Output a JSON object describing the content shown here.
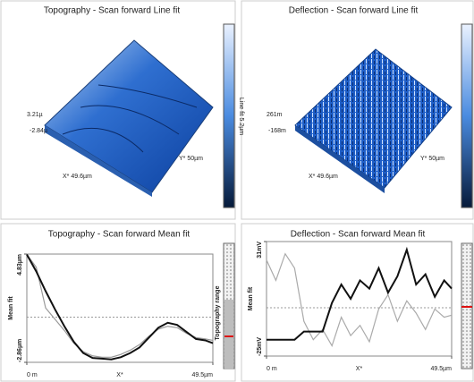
{
  "panels": [
    {
      "title": "Topography - Scan forward   Line fit",
      "z_top": "3.21µ",
      "z_bottom": "-2.84µ",
      "x_label": "X* 49.6µm",
      "y_label": "Y* 50µm",
      "colorbar_label": "Line fit 5.2µm"
    },
    {
      "title": "Deflection - Scan forward   Line fit",
      "z_top": "261m",
      "z_bottom": "-168m",
      "x_label": "X* 49.6µm",
      "y_label": "Y* 50µm"
    }
  ],
  "plots": [
    {
      "type": "line",
      "title": "Topography - Scan forward   Mean fit",
      "y_label": "Mean fit",
      "x_label": "X*",
      "side_label": "Topography range",
      "xlim": [
        0,
        49.5
      ],
      "xticks": [
        {
          "value": 0,
          "label": "0 m"
        },
        {
          "value": 49.5,
          "label": "49.5µm"
        }
      ],
      "ylim": [
        -2.86,
        4.83
      ],
      "yticks": [
        {
          "value": 4.83,
          "label": "4.83µm"
        },
        {
          "value": -2.86,
          "label": "-2.86µm"
        }
      ],
      "x": [
        0,
        2.5,
        5,
        7.5,
        10,
        12.5,
        15,
        17.5,
        20,
        22.5,
        25,
        27.5,
        30,
        32.5,
        35,
        37.5,
        40,
        42.5,
        45,
        47.5,
        49.5
      ],
      "series": [
        {
          "color": "#111111",
          "values": [
            4.8,
            3.6,
            2.2,
            0.9,
            -0.3,
            -1.4,
            -2.2,
            -2.55,
            -2.6,
            -2.65,
            -2.5,
            -2.2,
            -1.8,
            -1.1,
            -0.4,
            -0.05,
            -0.2,
            -0.7,
            -1.2,
            -1.3,
            -1.5
          ]
        },
        {
          "color": "#9a9a9a",
          "values": [
            4.8,
            3.9,
            1.0,
            0.2,
            -0.6,
            -1.5,
            -2.1,
            -2.4,
            -2.5,
            -2.5,
            -2.3,
            -2.0,
            -1.6,
            -1.0,
            -0.5,
            -0.3,
            -0.4,
            -0.8,
            -1.1,
            -1.2,
            -1.3
          ]
        }
      ]
    },
    {
      "type": "line",
      "title": "Deflection - Scan forward   Mean fit",
      "y_label": "Mean fit",
      "x_label": "X*",
      "xlim": [
        0,
        49.5
      ],
      "xticks": [
        {
          "value": 0,
          "label": "0 m"
        },
        {
          "value": 49.5,
          "label": "49.5µm"
        }
      ],
      "ylim": [
        -25,
        31
      ],
      "yticks": [
        {
          "value": 31,
          "label": "31mV"
        },
        {
          "value": -25,
          "label": "-25mV"
        }
      ],
      "x": [
        0,
        2.5,
        5,
        7.5,
        10,
        12.5,
        15,
        17.5,
        20,
        22.5,
        25,
        27.5,
        30,
        32.5,
        35,
        37.5,
        40,
        42.5,
        45,
        47.5,
        49.5
      ],
      "series": [
        {
          "color": "#111111",
          "values": [
            -17,
            -17,
            -17,
            -17,
            -13,
            -13,
            -13,
            1,
            10,
            3,
            12,
            8,
            18,
            6,
            14,
            27,
            10,
            15,
            4,
            12,
            8
          ]
        },
        {
          "color": "#aaaaaa",
          "values": [
            22,
            12,
            25,
            18,
            -8,
            -17,
            -12,
            -20,
            -6,
            -15,
            -10,
            -18,
            -2,
            5,
            -8,
            2,
            -4,
            -12,
            -2,
            -6,
            -5
          ]
        }
      ]
    }
  ]
}
